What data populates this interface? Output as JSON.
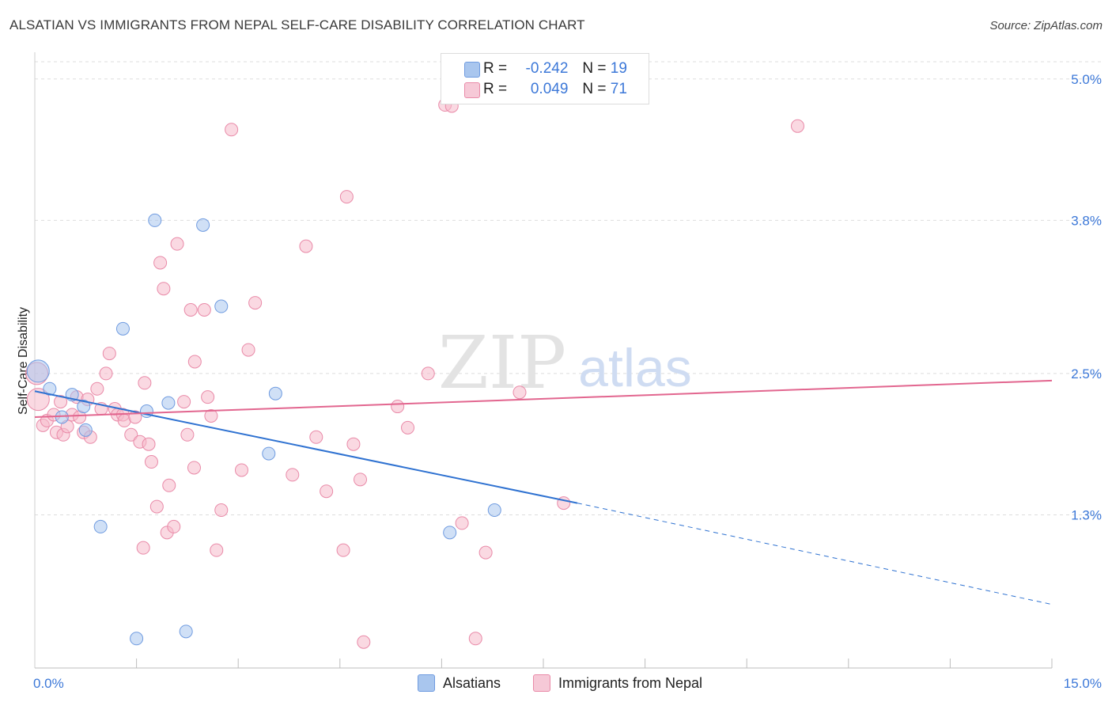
{
  "title": "ALSATIAN VS IMMIGRANTS FROM NEPAL SELF-CARE DISABILITY CORRELATION CHART",
  "source": "Source: ZipAtlas.com",
  "colors": {
    "blue_fill": "#a9c6ee",
    "blue_stroke": "#6f9be0",
    "blue_line": "#2f72d1",
    "pink_fill": "#f6b9cb",
    "pink_stroke": "#e98aa8",
    "pink_line": "#e2668f",
    "axis_label": "#3c78d8",
    "grid": "#dddddd"
  },
  "legend_top": {
    "rows": [
      {
        "r_label": "R =",
        "r_value": "-0.242",
        "n_label": "N =",
        "n_value": "19"
      },
      {
        "r_label": "R =",
        "r_value": "0.049",
        "n_label": "N =",
        "n_value": "71"
      }
    ]
  },
  "legend_bottom": {
    "items": [
      {
        "label": "Alsatians"
      },
      {
        "label": "Immigrants from Nepal"
      }
    ]
  },
  "watermark": {
    "zip": "ZIP",
    "atlas": "atlas"
  },
  "chart_data": {
    "type": "scatter",
    "title": "ALSATIAN VS IMMIGRANTS FROM NEPAL SELF-CARE DISABILITY CORRELATION CHART",
    "xlabel": "",
    "ylabel": "Self-Care Disability",
    "xlim": [
      0,
      15
    ],
    "ylim": [
      0,
      5.2
    ],
    "x_tick_labels": [
      {
        "value": 0,
        "label": "0.0%"
      },
      {
        "value": 15,
        "label": "15.0%"
      }
    ],
    "y_tick_labels": [
      {
        "value": 1.3,
        "label": "1.3%"
      },
      {
        "value": 2.5,
        "label": "2.5%"
      },
      {
        "value": 3.8,
        "label": "3.8%"
      },
      {
        "value": 5.0,
        "label": "5.0%"
      }
    ],
    "grid": true,
    "series": [
      {
        "name": "Alsatians",
        "color": "blue",
        "points": [
          [
            0.05,
            2.52
          ],
          [
            0.22,
            2.37
          ],
          [
            0.4,
            2.13
          ],
          [
            0.55,
            2.32
          ],
          [
            0.72,
            2.22
          ],
          [
            0.75,
            2.02
          ],
          [
            0.97,
            1.2
          ],
          [
            1.3,
            2.88
          ],
          [
            1.5,
            0.25
          ],
          [
            1.65,
            2.18
          ],
          [
            1.77,
            3.8
          ],
          [
            1.97,
            2.25
          ],
          [
            2.23,
            0.31
          ],
          [
            2.48,
            3.76
          ],
          [
            2.75,
            3.07
          ],
          [
            3.45,
            1.82
          ],
          [
            3.55,
            2.33
          ],
          [
            6.12,
            1.15
          ],
          [
            6.78,
            1.34
          ]
        ],
        "trend": {
          "x0": 0,
          "y0": 2.35,
          "x1": 8.0,
          "y1": 1.4,
          "dash_x1": 15.0,
          "dash_y1": 0.54
        }
      },
      {
        "name": "Immigrants from Nepal",
        "color": "pink",
        "points": [
          [
            0.03,
            2.5
          ],
          [
            0.05,
            2.28
          ],
          [
            0.12,
            2.06
          ],
          [
            0.18,
            2.1
          ],
          [
            0.28,
            2.15
          ],
          [
            0.32,
            2.0
          ],
          [
            0.38,
            2.26
          ],
          [
            0.42,
            1.98
          ],
          [
            0.48,
            2.05
          ],
          [
            0.55,
            2.15
          ],
          [
            0.62,
            2.3
          ],
          [
            0.66,
            2.13
          ],
          [
            0.72,
            2.0
          ],
          [
            0.78,
            2.28
          ],
          [
            0.82,
            1.96
          ],
          [
            0.92,
            2.37
          ],
          [
            0.98,
            2.2
          ],
          [
            1.05,
            2.5
          ],
          [
            1.1,
            2.67
          ],
          [
            1.18,
            2.2
          ],
          [
            1.22,
            2.15
          ],
          [
            1.3,
            2.15
          ],
          [
            1.32,
            2.1
          ],
          [
            1.42,
            1.98
          ],
          [
            1.48,
            2.13
          ],
          [
            1.55,
            1.92
          ],
          [
            1.6,
            1.02
          ],
          [
            1.62,
            2.42
          ],
          [
            1.68,
            1.9
          ],
          [
            1.72,
            1.75
          ],
          [
            1.8,
            1.37
          ],
          [
            1.85,
            3.44
          ],
          [
            1.9,
            3.22
          ],
          [
            1.95,
            1.15
          ],
          [
            1.98,
            1.55
          ],
          [
            2.05,
            1.2
          ],
          [
            2.1,
            3.6
          ],
          [
            2.2,
            2.26
          ],
          [
            2.25,
            1.98
          ],
          [
            2.3,
            3.04
          ],
          [
            2.35,
            1.7
          ],
          [
            2.36,
            2.6
          ],
          [
            2.5,
            3.04
          ],
          [
            2.55,
            2.3
          ],
          [
            2.6,
            2.14
          ],
          [
            2.68,
            1.0
          ],
          [
            2.75,
            1.34
          ],
          [
            2.9,
            4.57
          ],
          [
            3.05,
            1.68
          ],
          [
            3.15,
            2.7
          ],
          [
            3.25,
            3.1
          ],
          [
            3.8,
            1.64
          ],
          [
            4.0,
            3.58
          ],
          [
            4.15,
            1.96
          ],
          [
            4.3,
            1.5
          ],
          [
            4.55,
            1.0
          ],
          [
            4.6,
            4.0
          ],
          [
            4.7,
            1.9
          ],
          [
            4.8,
            1.6
          ],
          [
            4.85,
            0.22
          ],
          [
            5.35,
            2.22
          ],
          [
            5.5,
            2.04
          ],
          [
            5.8,
            2.5
          ],
          [
            6.05,
            4.78
          ],
          [
            6.15,
            4.77
          ],
          [
            6.3,
            1.23
          ],
          [
            6.5,
            0.25
          ],
          [
            6.65,
            0.98
          ],
          [
            7.15,
            2.34
          ],
          [
            7.8,
            1.4
          ],
          [
            11.25,
            4.6
          ]
        ],
        "trend": {
          "x0": 0,
          "y0": 2.13,
          "x1": 15.0,
          "y1": 2.44
        }
      }
    ]
  }
}
